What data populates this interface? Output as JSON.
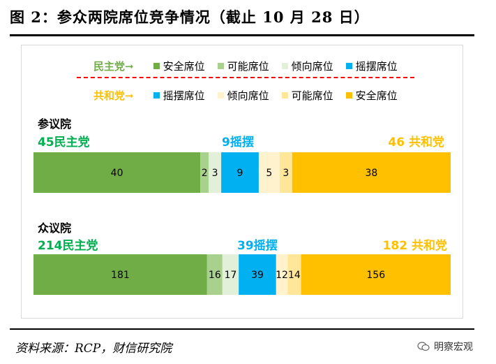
{
  "title": "图 2：参众两院席位竞争情况（截止 10 月 28 日）",
  "legend": {
    "dem_label": "民主党➞",
    "rep_label": "共和党➞",
    "dem_items": [
      {
        "label": "安全席位",
        "color": "#70ad47"
      },
      {
        "label": "可能席位",
        "color": "#a9d18e"
      },
      {
        "label": "倾向席位",
        "color": "#e2f0d9"
      },
      {
        "label": "摇摆席位",
        "color": "#00b0f0"
      }
    ],
    "rep_items": [
      {
        "label": "摇摆席位",
        "color": "#00b0f0"
      },
      {
        "label": "倾向席位",
        "color": "#fff2cc"
      },
      {
        "label": "可能席位",
        "color": "#ffe699"
      },
      {
        "label": "安全席位",
        "color": "#ffc000"
      }
    ]
  },
  "source": "资料来源：RCP，财信研究院",
  "watermark": "明察宏观",
  "chart_data": [
    {
      "type": "bar",
      "title": "参议院",
      "orientation": "horizontal-stacked",
      "totals": {
        "dem": "45民主党",
        "tossup": "9摇摆",
        "rep": "46 共和党"
      },
      "categories": [
        "民主党安全席位",
        "民主党可能席位",
        "民主党倾向席位",
        "摇摆席位",
        "共和党倾向席位",
        "共和党可能席位",
        "共和党安全席位"
      ],
      "values": [
        40,
        2,
        3,
        9,
        5,
        3,
        38
      ],
      "colors": [
        "#70ad47",
        "#a9d18e",
        "#e2f0d9",
        "#00b0f0",
        "#fff2cc",
        "#ffe699",
        "#ffc000"
      ]
    },
    {
      "type": "bar",
      "title": "众议院",
      "orientation": "horizontal-stacked",
      "totals": {
        "dem": "214民主党",
        "tossup": "39摇摆",
        "rep": "182 共和党"
      },
      "categories": [
        "民主党安全席位",
        "民主党可能席位",
        "民主党倾向席位",
        "摇摆席位",
        "共和党倾向席位",
        "共和党可能席位",
        "共和党安全席位"
      ],
      "values": [
        181,
        16,
        17,
        39,
        12,
        14,
        156
      ],
      "colors": [
        "#70ad47",
        "#a9d18e",
        "#e2f0d9",
        "#00b0f0",
        "#fff2cc",
        "#ffe699",
        "#ffc000"
      ]
    }
  ]
}
